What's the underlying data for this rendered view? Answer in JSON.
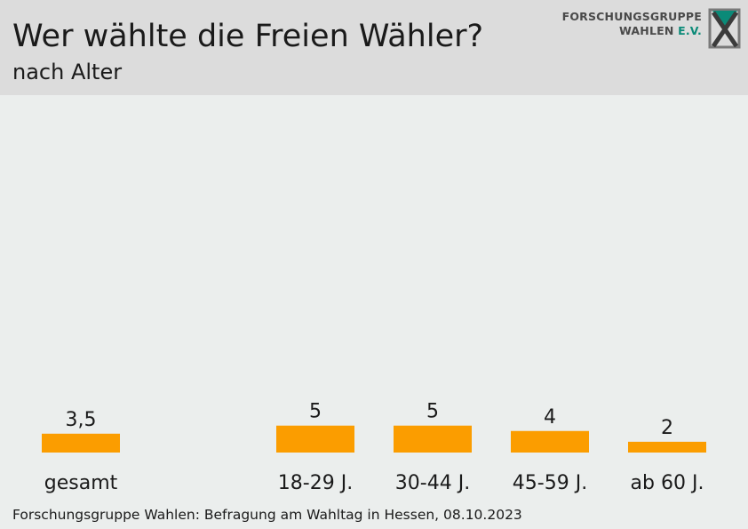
{
  "header": {
    "title": "Wer wählte die Freien Wähler?",
    "subtitle": "nach Alter"
  },
  "logo": {
    "line1": "FORSCHUNGSGRUPPE",
    "line2": "WAHLEN",
    "line2_suffix": "E.V.",
    "mark_icon": "fgw-x-logo-icon"
  },
  "footer": {
    "source": "Forschungsgruppe Wahlen: Befragung am Wahltag in Hessen, 08.10.2023"
  },
  "colors": {
    "bar": "#fb9d00",
    "header_bg": "#dcdcdc",
    "chart_bg": "#ebeeed",
    "text": "#1a1a1a",
    "logo_accent": "#0b8a78"
  },
  "chart_data": {
    "type": "bar",
    "categories": [
      "gesamt",
      "18-29 J.",
      "30-44 J.",
      "45-59 J.",
      "ab 60 J."
    ],
    "values": [
      3.5,
      5,
      5,
      4,
      2
    ],
    "value_labels": [
      "3,5",
      "5",
      "5",
      "4",
      "2"
    ],
    "ylim": [
      0,
      100
    ],
    "grid": false
  }
}
